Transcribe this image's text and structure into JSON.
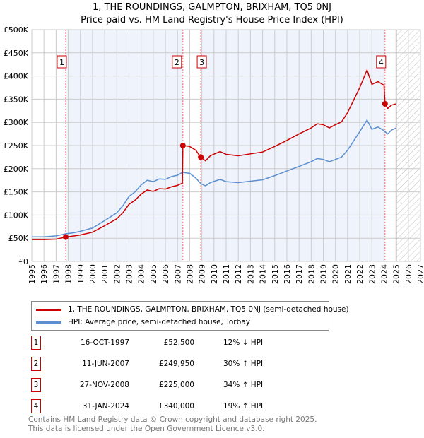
{
  "title": "1, THE ROUNDINGS, GALMPTON, BRIXHAM, TQ5 0NJ",
  "subtitle": "Price paid vs. HM Land Registry's House Price Index (HPI)",
  "chart_data": {
    "type": "line",
    "xlim": [
      1995,
      2027
    ],
    "ylim": [
      0,
      500000
    ],
    "x_ticks": [
      "1995",
      "1996",
      "1997",
      "1998",
      "1999",
      "2000",
      "2001",
      "2002",
      "2003",
      "2004",
      "2005",
      "2006",
      "2007",
      "2008",
      "2009",
      "2010",
      "2011",
      "2012",
      "2013",
      "2014",
      "2015",
      "2016",
      "2017",
      "2018",
      "2019",
      "2020",
      "2021",
      "2022",
      "2023",
      "2024",
      "2025",
      "2026",
      "2027"
    ],
    "y_ticks": [
      {
        "v": 0,
        "l": "£0"
      },
      {
        "v": 50000,
        "l": "£50K"
      },
      {
        "v": 100000,
        "l": "£100K"
      },
      {
        "v": 150000,
        "l": "£150K"
      },
      {
        "v": 200000,
        "l": "£200K"
      },
      {
        "v": 250000,
        "l": "£250K"
      },
      {
        "v": 300000,
        "l": "£300K"
      },
      {
        "v": 350000,
        "l": "£350K"
      },
      {
        "v": 400000,
        "l": "£400K"
      },
      {
        "v": 450000,
        "l": "£450K"
      },
      {
        "v": 500000,
        "l": "£500K"
      }
    ],
    "series": [
      {
        "name": "1, THE ROUNDINGS, GALMPTON, BRIXHAM, TQ5 0NJ (semi-detached house)",
        "color": "#cc0000",
        "x": [
          1995,
          1996,
          1997,
          1997.8,
          1998.5,
          1999,
          2000,
          2000.5,
          2001,
          2002,
          2002.5,
          2003,
          2003.5,
          2004,
          2004.5,
          2005,
          2005.5,
          2006,
          2006.5,
          2007,
          2007.4,
          2007.44,
          2008,
          2008.5,
          2008.9,
          2009.3,
          2009.7,
          2010.5,
          2011,
          2012,
          2013,
          2014,
          2015,
          2016,
          2017,
          2018,
          2018.5,
          2019,
          2019.5,
          2020,
          2020.5,
          2021,
          2021.5,
          2022,
          2022.6,
          2023,
          2023.5,
          2024,
          2024.08,
          2024.3,
          2024.6,
          2025
        ],
        "y": [
          47000,
          47000,
          48000,
          52500,
          55000,
          57000,
          63000,
          70000,
          77000,
          92000,
          105000,
          123000,
          132000,
          145000,
          154000,
          151000,
          157000,
          156000,
          161000,
          164000,
          169000,
          249950,
          248000,
          240000,
          225000,
          217000,
          228000,
          237000,
          231000,
          228000,
          232000,
          236000,
          248000,
          261000,
          275000,
          288000,
          297000,
          295000,
          288000,
          295000,
          301000,
          321000,
          348000,
          375000,
          413000,
          382000,
          388000,
          380000,
          340000,
          330000,
          337000,
          340000
        ]
      },
      {
        "name": "HPI: Average price, semi-detached house, Torbay",
        "color": "#5b8fd0",
        "x": [
          1995,
          1996,
          1997,
          1997.8,
          1998.5,
          1999,
          2000,
          2000.5,
          2001,
          2002,
          2002.5,
          2003,
          2003.5,
          2004,
          2004.5,
          2005,
          2005.5,
          2006,
          2006.5,
          2007,
          2007.4,
          2008,
          2008.5,
          2008.9,
          2009.3,
          2009.7,
          2010.5,
          2011,
          2012,
          2013,
          2014,
          2015,
          2016,
          2017,
          2018,
          2018.5,
          2019,
          2019.5,
          2020,
          2020.5,
          2021,
          2021.5,
          2022,
          2022.6,
          2023,
          2023.5,
          2024,
          2024.3,
          2024.6,
          2025
        ],
        "y": [
          53000,
          53000,
          55000,
          59500,
          62000,
          65000,
          72000,
          80000,
          88000,
          105000,
          120000,
          140000,
          150000,
          165000,
          175000,
          172000,
          178000,
          177000,
          183000,
          186000,
          192000,
          190000,
          180000,
          168000,
          163000,
          170000,
          177000,
          172000,
          170000,
          173000,
          176000,
          185000,
          195000,
          205000,
          215000,
          222000,
          220000,
          215000,
          220000,
          225000,
          240000,
          260000,
          280000,
          305000,
          285000,
          290000,
          282000,
          275000,
          283000,
          288000
        ]
      }
    ],
    "sales": [
      {
        "n": "1",
        "x": 1997.79,
        "y": 52500
      },
      {
        "n": "2",
        "x": 2007.44,
        "y": 249950
      },
      {
        "n": "3",
        "x": 2008.91,
        "y": 225000
      },
      {
        "n": "4",
        "x": 2024.08,
        "y": 340000
      }
    ],
    "forecast_from": 2025
  },
  "legend": [
    "1, THE ROUNDINGS, GALMPTON, BRIXHAM, TQ5 0NJ (semi-detached house)",
    "HPI: Average price, semi-detached house, Torbay"
  ],
  "table": [
    {
      "n": "1",
      "date": "16-OCT-1997",
      "price": "£52,500",
      "hpi": "12% ↓ HPI"
    },
    {
      "n": "2",
      "date": "11-JUN-2007",
      "price": "£249,950",
      "hpi": "30% ↑ HPI"
    },
    {
      "n": "3",
      "date": "27-NOV-2008",
      "price": "£225,000",
      "hpi": "34% ↑ HPI"
    },
    {
      "n": "4",
      "date": "31-JAN-2024",
      "price": "£340,000",
      "hpi": "19% ↑ HPI"
    }
  ],
  "footer": [
    "Contains HM Land Registry data © Crown copyright and database right 2025.",
    "This data is licensed under the Open Government Licence v3.0."
  ]
}
